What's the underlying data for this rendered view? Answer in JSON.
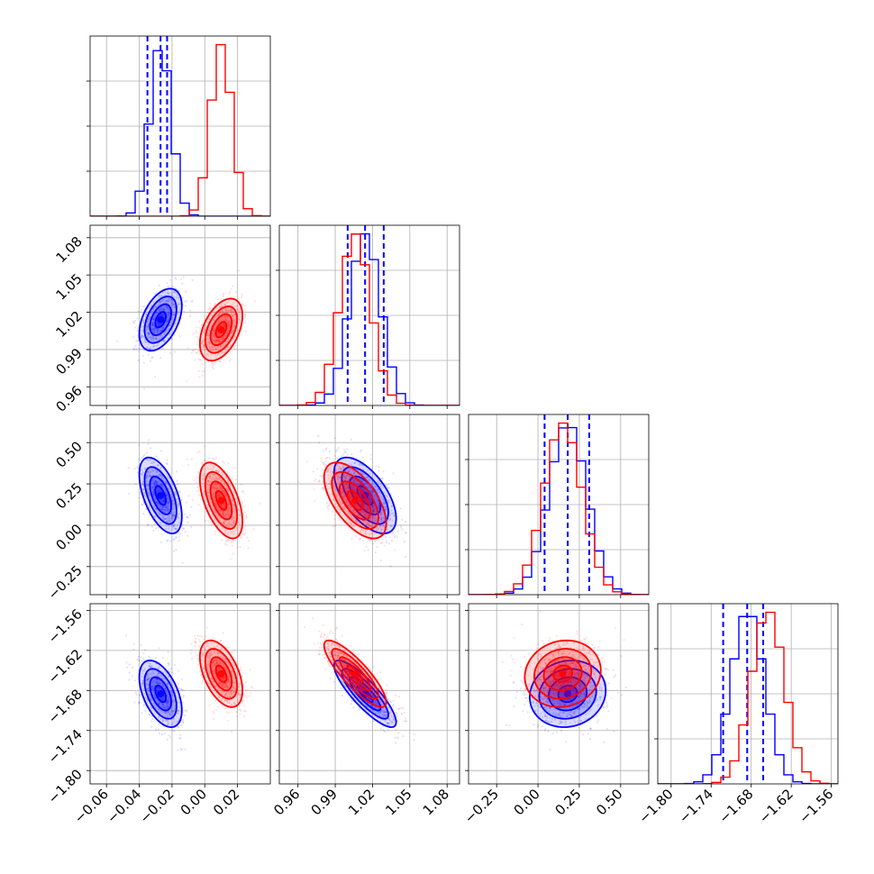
{
  "chart_data": {
    "type": "corner",
    "colors": {
      "series_a": "#0000ff",
      "series_b": "#ff0000",
      "grid": "#b0b0b0"
    },
    "grid": true,
    "series": [
      {
        "color": "blue",
        "mean": [
          -0.027,
          1.014,
          0.18,
          -1.685
        ],
        "sd": [
          0.0065,
          0.0125,
          0.115,
          0.025
        ],
        "quantiles": [
          [
            -0.035,
            -0.027,
            -0.023
          ],
          [
            1.0,
            1.014,
            1.029
          ],
          [
            0.04,
            0.18,
            0.31
          ],
          [
            -1.722,
            -1.686,
            -1.662
          ]
        ]
      },
      {
        "color": "red",
        "mean": [
          0.01,
          1.006,
          0.15,
          -1.655
        ],
        "sd": [
          0.0065,
          0.0125,
          0.115,
          0.025
        ],
        "quantiles": null
      }
    ],
    "correlations": {
      "0-1": 0.45,
      "0-2": -0.55,
      "0-3": -0.5,
      "1-2": -0.6,
      "1-3": -0.85,
      "2-3": 0.1
    },
    "params": [
      {
        "range": [
          -0.07,
          0.04
        ],
        "ticks": [
          "-0.06",
          "-0.04",
          "-0.02",
          "0.00",
          "0.02"
        ],
        "tick_values": [
          -0.06,
          -0.04,
          -0.02,
          0.0,
          0.02
        ]
      },
      {
        "range": [
          0.945,
          1.09
        ],
        "ticks": [
          "0.96",
          "0.99",
          "1.02",
          "1.05",
          "1.08"
        ],
        "tick_values": [
          0.96,
          0.99,
          1.02,
          1.05,
          1.08
        ]
      },
      {
        "range": [
          -0.42,
          0.67
        ],
        "ticks": [
          "-0.25",
          "0.00",
          "0.25",
          "0.50"
        ],
        "tick_values": [
          -0.25,
          0.0,
          0.25,
          0.5
        ]
      },
      {
        "range": [
          -1.82,
          -1.55
        ],
        "ticks": [
          "-1.80",
          "-1.74",
          "-1.68",
          "-1.62",
          "-1.56"
        ],
        "tick_values": [
          -1.8,
          -1.74,
          -1.68,
          -1.62,
          -1.56
        ]
      }
    ]
  }
}
